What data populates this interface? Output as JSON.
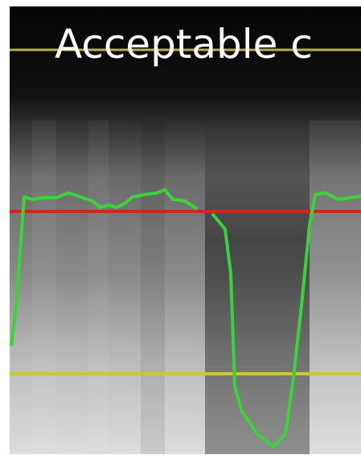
{
  "title": "Acceptable c"
}
